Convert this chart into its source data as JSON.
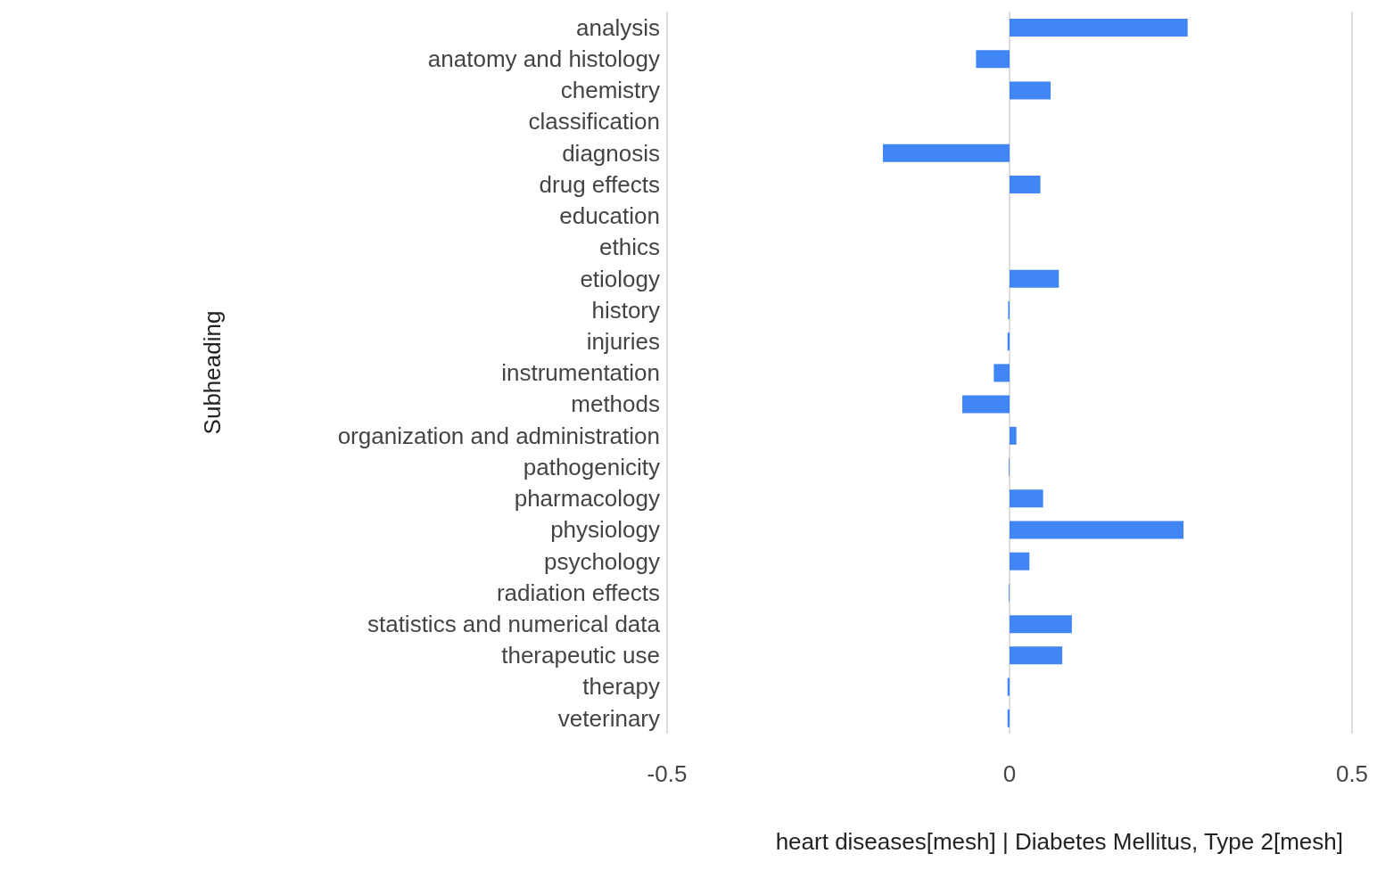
{
  "chart_data": {
    "type": "bar",
    "orientation": "horizontal",
    "xlabel": "heart diseases[mesh] | Diabetes Mellitus, Type 2[mesh]",
    "ylabel": "Subheading",
    "categories": [
      "analysis",
      "anatomy and histology",
      "chemistry",
      "classification",
      "diagnosis",
      "drug effects",
      "education",
      "ethics",
      "etiology",
      "history",
      "injuries",
      "instrumentation",
      "methods",
      "organization and administration",
      "pathogenicity",
      "pharmacology",
      "physiology",
      "psychology",
      "radiation effects",
      "statistics and numerical data",
      "therapeutic use",
      "therapy",
      "veterinary"
    ],
    "values": [
      0.26,
      -0.049,
      0.06,
      0,
      -0.185,
      0.045,
      0,
      0,
      0.072,
      -0.002,
      -0.003,
      -0.023,
      -0.069,
      0.01,
      -0.001,
      0.049,
      0.254,
      0.029,
      -0.001,
      0.091,
      0.077,
      -0.003,
      -0.003
    ],
    "color": "#4285f4",
    "xlim": [
      -0.5,
      0.5
    ],
    "xticks": [
      -0.5,
      0,
      0.5
    ],
    "grid": "x",
    "legend": false
  }
}
